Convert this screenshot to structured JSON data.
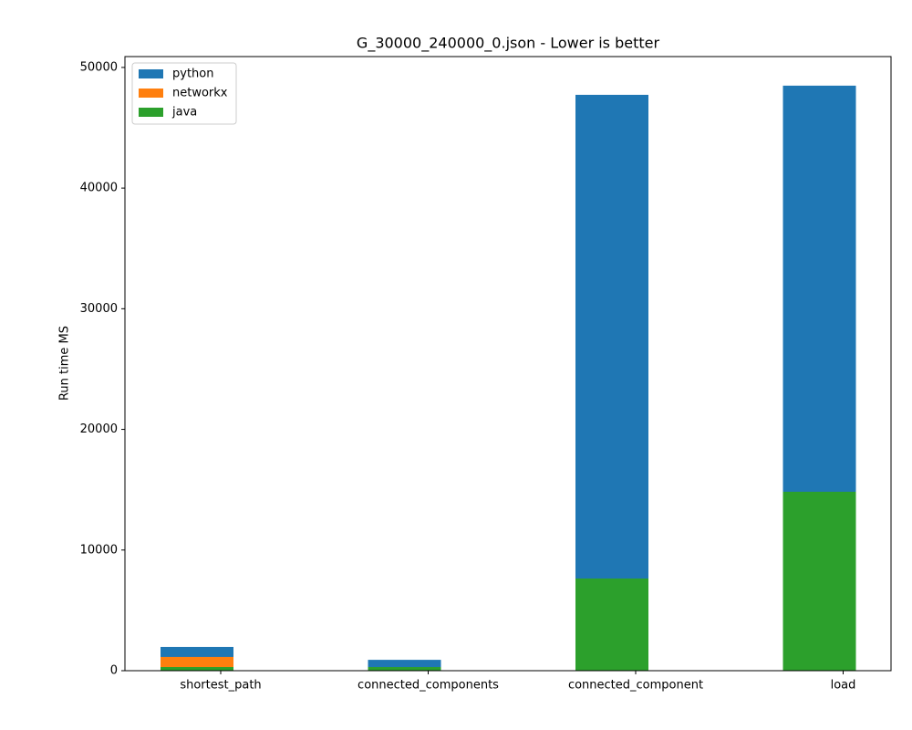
{
  "chart_data": {
    "type": "bar",
    "title": "G_30000_240000_0.json - Lower is better",
    "y_label": "Run time MS",
    "categories": [
      "shortest_path",
      "connected_components",
      "connected_component",
      "load"
    ],
    "series": [
      {
        "name": "python",
        "color": "#1f77b4",
        "values": [
          1970,
          900,
          47730,
          48490
        ]
      },
      {
        "name": "networkx",
        "color": "#ff7f0e",
        "values": [
          1140,
          null,
          null,
          null
        ]
      },
      {
        "name": "java",
        "color": "#2ca02c",
        "values": [
          300,
          300,
          7640,
          14830
        ]
      }
    ],
    "ylim": [
      0,
      50900
    ],
    "yticks": [
      0,
      10000,
      20000,
      30000,
      40000,
      50000
    ],
    "legend": "upper left"
  }
}
